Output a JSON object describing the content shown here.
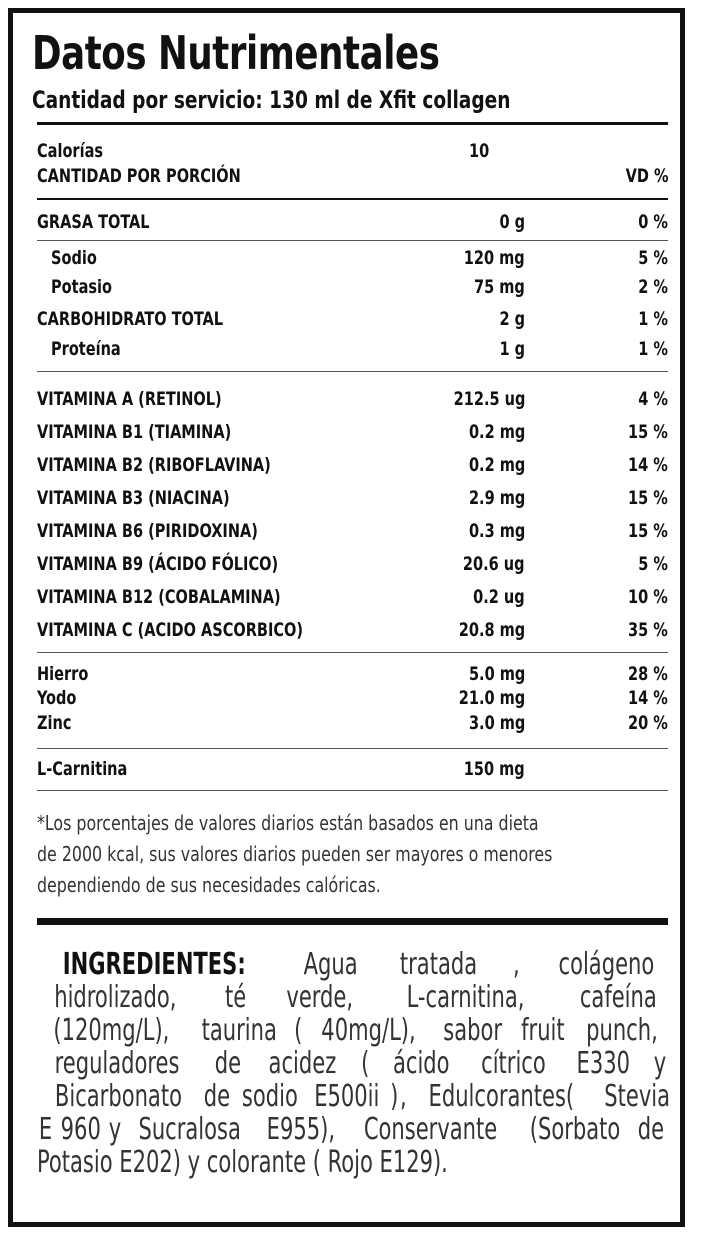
{
  "title": "Datos Nutrimentales",
  "subtitle": "Cantidad por servicio: 130 ml de Xfit collagen",
  "calories": {
    "label": "Calorías",
    "value": "10"
  },
  "portion_header": {
    "label": "CANTIDAD POR PORCIÓN",
    "vd": "VD %"
  },
  "macros": [
    {
      "name": "GRASA TOTAL",
      "amount": "0 g",
      "pct": "0 %"
    },
    {
      "name": "Sodio",
      "amount": "120 mg",
      "pct": "5 %"
    },
    {
      "name": "Potasio",
      "amount": "75 mg",
      "pct": "2 %"
    },
    {
      "name": "CARBOHIDRATO TOTAL",
      "amount": "2 g",
      "pct": "1 %"
    },
    {
      "name": "Proteína",
      "amount": "1 g",
      "pct": "1 %"
    }
  ],
  "vitamins": [
    {
      "name": "VITAMINA A (RETINOL)",
      "amount": "212.5 ug",
      "pct": "4 %"
    },
    {
      "name": "VITAMINA B1 (TIAMINA)",
      "amount": "0.2 mg",
      "pct": "15 %"
    },
    {
      "name": "VITAMINA B2 (RIBOFLAVINA)",
      "amount": "0.2 mg",
      "pct": "14 %"
    },
    {
      "name": "VITAMINA B3 (NIACINA)",
      "amount": "2.9 mg",
      "pct": "15 %"
    },
    {
      "name": "VITAMINA B6 (PIRIDOXINA)",
      "amount": "0.3 mg",
      "pct": "15 %"
    },
    {
      "name": "VITAMINA B9 (ÁCIDO FÓLICO)",
      "amount": "20.6 ug",
      "pct": "5 %"
    },
    {
      "name": "VITAMINA B12 (COBALAMINA)",
      "amount": "0.2 ug",
      "pct": "10 %"
    },
    {
      "name": "VITAMINA C (ACIDO ASCORBICO)",
      "amount": "20.8 mg",
      "pct": "35 %"
    }
  ],
  "minerals": [
    {
      "name": "Hierro",
      "amount": "5.0 mg",
      "pct": "28 %"
    },
    {
      "name": "Yodo",
      "amount": "21.0 mg",
      "pct": "14 %"
    },
    {
      "name": "Zinc",
      "amount": "3.0 mg",
      "pct": "20 %"
    }
  ],
  "carnitine": {
    "name": "L-Carnitina",
    "amount": "150 mg"
  },
  "footnote": [
    "*Los porcentajes de valores diarios están basados en una dieta",
    "de 2000 kcal, sus valores diarios pueden ser mayores o menores",
    "dependiendo de sus necesidades calóricas."
  ],
  "ingredients": {
    "heading": "INGREDIENTES:",
    "lines": [
      [
        "Agua",
        "tratada",
        ",",
        "colágeno"
      ],
      [
        "hidrolizado,",
        "té",
        "verde,",
        "L-carnitina,",
        "cafeína"
      ],
      [
        "(120mg/L),",
        "taurina",
        "(",
        "40mg/L),",
        "sabor",
        "fruit",
        "punch,"
      ],
      [
        "reguladores",
        "de",
        "acidez",
        "(",
        "ácido",
        "cítrico",
        "E330",
        "y"
      ],
      [
        "Bicarbonato",
        "de",
        "sodio",
        "E500ii",
        ")",
        ",",
        "Edulcorantes(",
        "Stevia"
      ],
      [
        "E",
        "960",
        "y",
        "Sucralosa",
        "E955),",
        "Conservante",
        "(Sorbato",
        "de"
      ],
      [
        "Potasio E202) y colorante ( Rojo E129)."
      ]
    ]
  }
}
